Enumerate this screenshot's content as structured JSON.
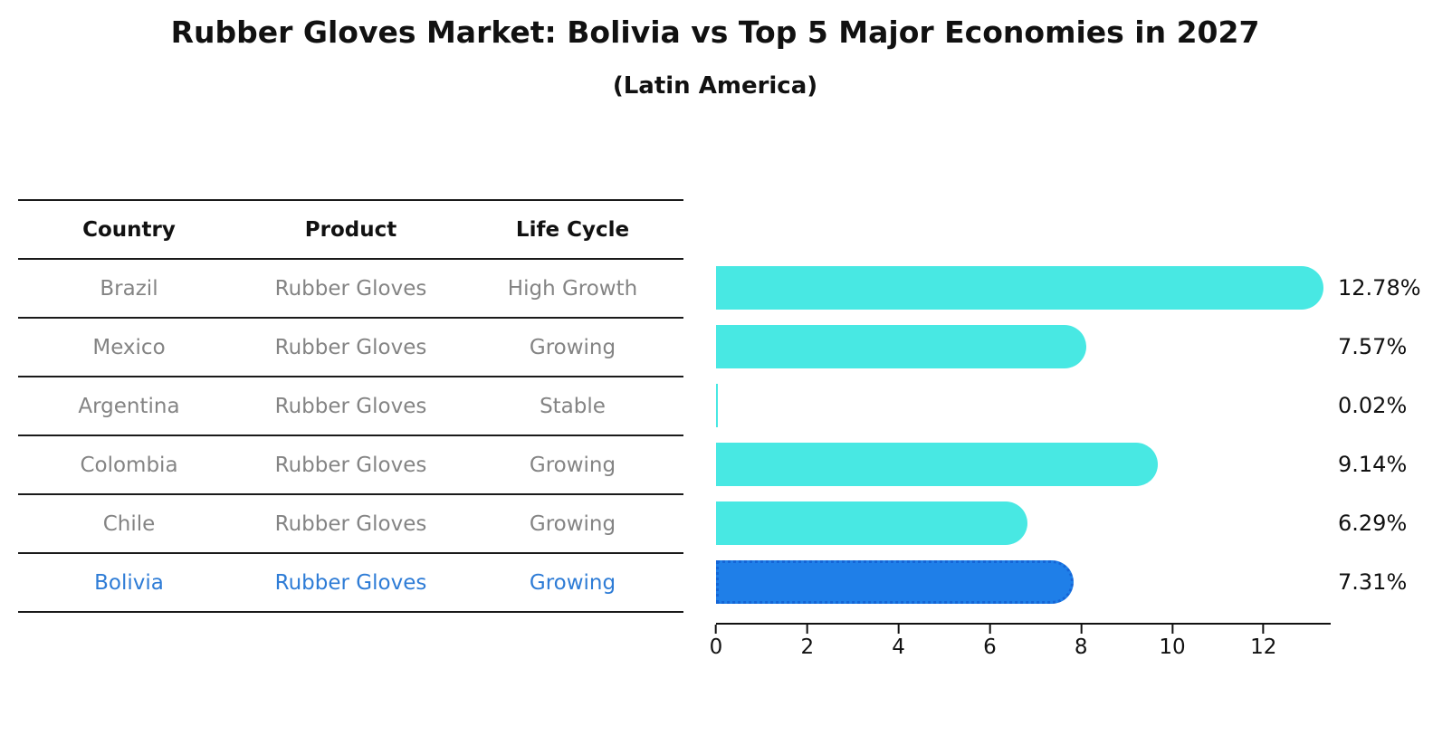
{
  "title": "Rubber Gloves Market: Bolivia vs Top 5 Major Economies in 2027",
  "subtitle": "(Latin America)",
  "table": {
    "headers": [
      "Country",
      "Product",
      "Life Cycle"
    ],
    "rows": [
      {
        "country": "Brazil",
        "product": "Rubber Gloves",
        "life_cycle": "High Growth",
        "highlight": false
      },
      {
        "country": "Mexico",
        "product": "Rubber Gloves",
        "life_cycle": "Growing",
        "highlight": false
      },
      {
        "country": "Argentina",
        "product": "Rubber Gloves",
        "life_cycle": "Stable",
        "highlight": false
      },
      {
        "country": "Colombia",
        "product": "Rubber Gloves",
        "life_cycle": "Growing",
        "highlight": false
      },
      {
        "country": "Chile",
        "product": "Rubber Gloves",
        "life_cycle": "Growing",
        "highlight": false
      },
      {
        "country": "Bolivia",
        "product": "Rubber Gloves",
        "life_cycle": "Growing",
        "highlight": true
      }
    ]
  },
  "chart_data": {
    "type": "bar",
    "orientation": "horizontal",
    "categories": [
      "Brazil",
      "Mexico",
      "Argentina",
      "Colombia",
      "Chile",
      "Bolivia"
    ],
    "values": [
      12.78,
      7.57,
      0.02,
      9.14,
      6.29,
      7.31
    ],
    "value_labels": [
      "12.78%",
      "7.57%",
      "0.02%",
      "9.14%",
      "6.29%",
      "7.31%"
    ],
    "xticks": [
      0,
      2,
      4,
      6,
      8,
      10,
      12
    ],
    "xlim": [
      0,
      13.5
    ],
    "grid": false,
    "legend": false,
    "bar_color": "#48e8e3",
    "highlight_index": 5,
    "highlight_bar_color": "#1f7fe8",
    "highlight_border_color": "#1565d6",
    "highlight_text_color": "#2e7cd6"
  }
}
